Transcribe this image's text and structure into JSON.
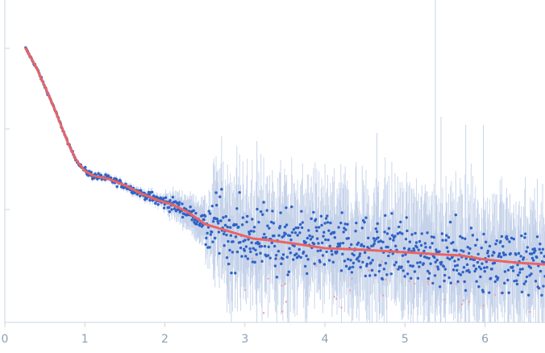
{
  "chart_data": {
    "type": "scatter",
    "title": "",
    "xlabel": "",
    "ylabel": "",
    "xlim": [
      0,
      6.75
    ],
    "x_ticks": [
      0,
      1,
      2,
      3,
      4,
      5,
      6
    ],
    "x_tick_labels": [
      "0",
      "1",
      "2",
      "3",
      "4",
      "5",
      "6"
    ],
    "y_scale": "log",
    "y_ticks_decades": 3,
    "y_tick_labels": [],
    "grid": false,
    "legend": "none",
    "series": [
      {
        "role": "experimental data with error bars",
        "color": "#2f62c6",
        "error_color": "#b9c9e6",
        "x_range": [
          0.26,
          6.75
        ],
        "profile_x": [
          0.26,
          0.4,
          0.6,
          0.8,
          0.9,
          1.0,
          1.1,
          1.3,
          1.5,
          1.7,
          1.9,
          2.1,
          2.3,
          2.5,
          2.7,
          2.9,
          3.1,
          3.3,
          3.6,
          4.0,
          4.5,
          5.0,
          5.5,
          5.7,
          6.0,
          6.4,
          6.75
        ],
        "profile_y_log": [
          3.0,
          2.75,
          2.3,
          1.8,
          1.6,
          1.48,
          1.42,
          1.38,
          1.3,
          1.2,
          1.12,
          1.06,
          0.96,
          0.82,
          0.76,
          0.7,
          0.64,
          0.62,
          0.58,
          0.52,
          0.5,
          0.47,
          0.44,
          0.43,
          0.38,
          0.34,
          0.32
        ]
      },
      {
        "role": "model fit",
        "color": "#e96464",
        "x": [
          0.26,
          0.4,
          0.6,
          0.8,
          0.9,
          1.0,
          1.1,
          1.3,
          1.5,
          1.7,
          1.9,
          2.1,
          2.3,
          2.5,
          2.7,
          2.9,
          3.1,
          3.3,
          3.6,
          4.0,
          4.5,
          5.0,
          5.5,
          5.7,
          6.0,
          6.4,
          6.75
        ],
        "y_log": [
          3.0,
          2.75,
          2.3,
          1.8,
          1.6,
          1.48,
          1.42,
          1.38,
          1.3,
          1.2,
          1.12,
          1.06,
          0.96,
          0.82,
          0.76,
          0.7,
          0.64,
          0.62,
          0.58,
          0.52,
          0.5,
          0.47,
          0.44,
          0.43,
          0.38,
          0.34,
          0.32
        ]
      },
      {
        "role": "negative / outlier points",
        "color": "#f0a0a0"
      }
    ]
  }
}
